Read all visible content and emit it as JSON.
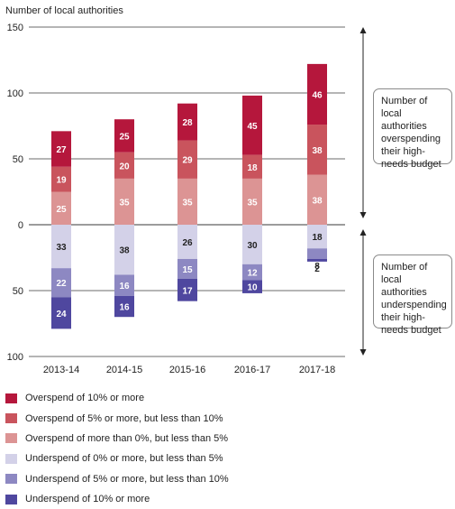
{
  "chart_data": {
    "type": "bar",
    "stacked": true,
    "diverging": true,
    "title": "",
    "ylabel": "Number of local authorities",
    "xlabel": "",
    "categories": [
      "2013-14",
      "2014-15",
      "2015-16",
      "2016-17",
      "2017-18"
    ],
    "ylim": [
      -100,
      150
    ],
    "y_ticks": [
      {
        "value": 150,
        "label": "150"
      },
      {
        "value": 100,
        "label": "100"
      },
      {
        "value": 50,
        "label": "50"
      },
      {
        "value": 0,
        "label": "0"
      },
      {
        "value": -50,
        "label": "50"
      },
      {
        "value": -100,
        "label": "100"
      }
    ],
    "grid": true,
    "legend_position": "bottom-left",
    "series": [
      {
        "name": "Overspend of 10% or more",
        "direction": "up",
        "color": "#b5173c",
        "values": [
          27,
          25,
          28,
          45,
          46
        ]
      },
      {
        "name": "Overspend of 5% or more, but less than 10%",
        "direction": "up",
        "color": "#c9545d",
        "values": [
          19,
          20,
          29,
          18,
          38
        ]
      },
      {
        "name": "Overspend of more than 0%, but less than 5%",
        "direction": "up",
        "color": "#dc9494",
        "values": [
          25,
          35,
          35,
          35,
          38
        ]
      },
      {
        "name": "Underspend of 0% or more, but less than 5%",
        "direction": "down",
        "color": "#d3d1e8",
        "values": [
          33,
          38,
          26,
          30,
          18
        ]
      },
      {
        "name": "Underspend of 5% or more, but less than 10%",
        "direction": "down",
        "color": "#8d88c2",
        "values": [
          22,
          16,
          15,
          12,
          8
        ]
      },
      {
        "name": "Underspend of 10% or more",
        "direction": "down",
        "color": "#4f479f",
        "values": [
          24,
          16,
          17,
          10,
          2
        ]
      }
    ],
    "annotations": [
      {
        "text": "Number of local authorities overspending their high-needs budget"
      },
      {
        "text": "Number of local authorities underspending their high-needs budget"
      }
    ]
  }
}
